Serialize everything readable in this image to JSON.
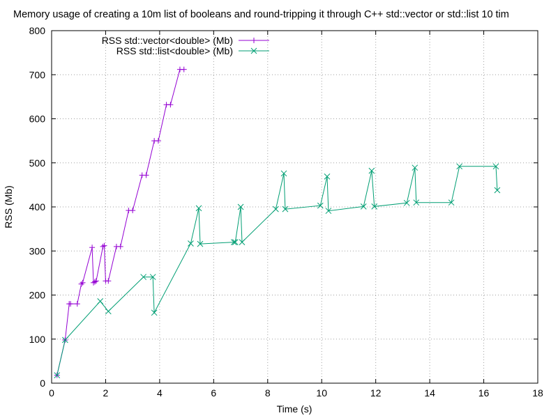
{
  "chart_data": {
    "type": "line",
    "title": "Memory usage of creating a 10m list of booleans and round-tripping it through C++ std::vector or std::list 10 tim",
    "xlabel": "Time (s)",
    "ylabel": "RSS (Mb)",
    "xlim": [
      0,
      18
    ],
    "ylim": [
      0,
      800
    ],
    "xticks": [
      0,
      2,
      4,
      6,
      8,
      10,
      12,
      14,
      16,
      18
    ],
    "yticks": [
      0,
      100,
      200,
      300,
      400,
      500,
      600,
      700,
      800
    ],
    "grid": true,
    "legend_position": "top-left",
    "series": [
      {
        "name": "RSS std::vector<double> (Mb)",
        "color": "#9400d3",
        "marker": "plus",
        "x": [
          0.2,
          0.5,
          0.65,
          0.7,
          0.95,
          1.1,
          1.15,
          1.5,
          1.55,
          1.6,
          1.65,
          1.9,
          1.95,
          2.0,
          2.1,
          2.4,
          2.55,
          2.85,
          3.0,
          3.35,
          3.5,
          3.8,
          3.95,
          4.25,
          4.4,
          4.75,
          4.9
        ],
        "y": [
          18,
          98,
          180,
          180,
          180,
          225,
          228,
          308,
          228,
          230,
          232,
          310,
          312,
          232,
          232,
          310,
          310,
          392,
          392,
          472,
          472,
          550,
          550,
          632,
          632,
          712,
          712
        ]
      },
      {
        "name": "RSS std::list<double> (Mb)",
        "color": "#009e73",
        "marker": "cross",
        "x": [
          0.2,
          0.5,
          1.8,
          2.1,
          3.4,
          3.75,
          3.8,
          5.15,
          5.45,
          5.5,
          6.75,
          6.8,
          7.0,
          7.05,
          8.3,
          8.6,
          8.65,
          9.95,
          10.2,
          10.25,
          11.55,
          11.85,
          11.95,
          13.15,
          13.45,
          13.5,
          14.8,
          15.1,
          16.45,
          16.5
        ],
        "y": [
          18,
          98,
          186,
          163,
          241,
          241,
          160,
          317,
          397,
          316,
          320,
          320,
          400,
          320,
          395,
          476,
          395,
          403,
          469,
          391,
          401,
          482,
          401,
          409,
          489,
          410,
          410,
          492,
          492,
          438
        ]
      }
    ]
  }
}
